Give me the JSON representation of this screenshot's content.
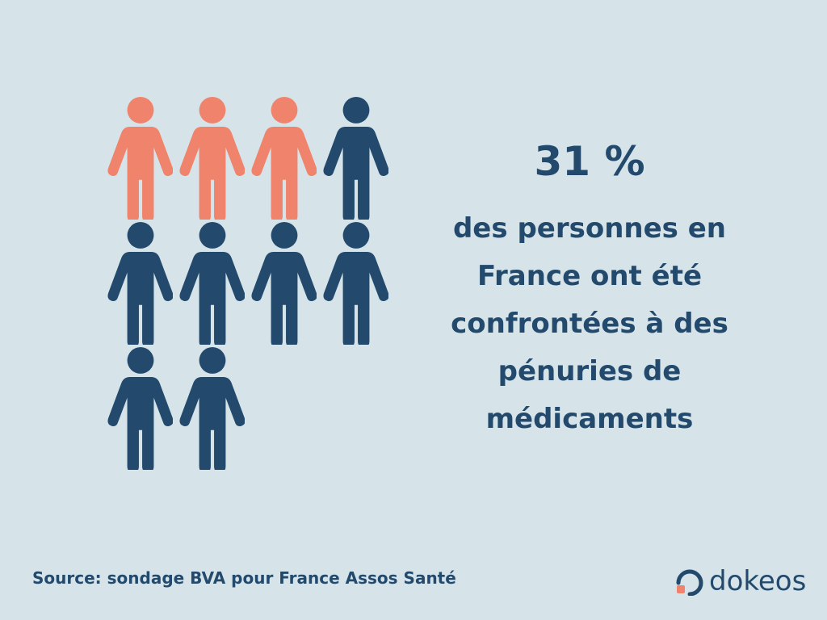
{
  "stat": {
    "value": "31 %",
    "caption_lines": [
      "des personnes en",
      "France ont été",
      "confrontées à des",
      "pénuries de",
      "médicaments"
    ]
  },
  "pictogram": {
    "total": 10,
    "highlighted": 3,
    "per_row": 4,
    "highlight_color": "#f0836b",
    "base_color": "#234a6c"
  },
  "source": "Source: sondage BVA pour France Assos Santé",
  "brand": {
    "name": "dokeos",
    "mark_color": "#234a6c",
    "accent_color": "#f0836b"
  }
}
